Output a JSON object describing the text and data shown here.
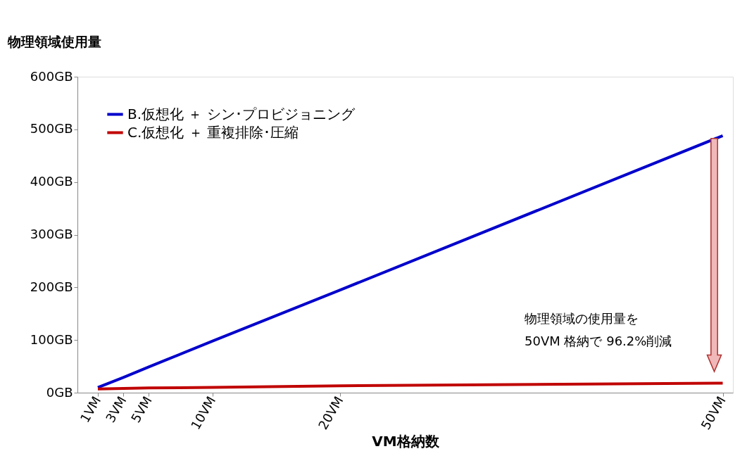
{
  "chart_data": {
    "type": "line",
    "xlabel": "VM格納数",
    "ylabel": "物理領域使用量",
    "x": [
      1,
      3,
      5,
      10,
      20,
      50
    ],
    "series": [
      {
        "name": "B.仮想化 ＋ シン･プロビジョニング",
        "color": "#0000cc",
        "values": [
          10,
          29,
          49,
          98,
          195,
          488
        ]
      },
      {
        "name": "C.仮想化 ＋ 重複排除･圧縮",
        "color": "#c00000",
        "values": [
          7,
          8,
          9,
          10,
          13,
          18
        ]
      }
    ],
    "xlim": [
      -0.6,
      50.8
    ],
    "xticks": [
      {
        "value": 1,
        "label": "1VM"
      },
      {
        "value": 3,
        "label": "3VM"
      },
      {
        "value": 5,
        "label": "5VM"
      },
      {
        "value": 10,
        "label": "10VM"
      },
      {
        "value": 20,
        "label": "20VM"
      },
      {
        "value": 50,
        "label": "50VM"
      }
    ],
    "ylim": [
      0,
      600
    ],
    "yticks": [
      {
        "value": 0,
        "label": "0GB"
      },
      {
        "value": 100,
        "label": "100GB"
      },
      {
        "value": 200,
        "label": "200GB"
      },
      {
        "value": 300,
        "label": "300GB"
      },
      {
        "value": 400,
        "label": "400GB"
      },
      {
        "value": 500,
        "label": "500GB"
      },
      {
        "value": 600,
        "label": "600GB"
      }
    ],
    "grid": false,
    "legend": "top left",
    "marker": "none",
    "line_style": "solid",
    "annotations": [
      "物理領域の使用量を",
      "50VM 格納で 96.2%削減"
    ]
  }
}
